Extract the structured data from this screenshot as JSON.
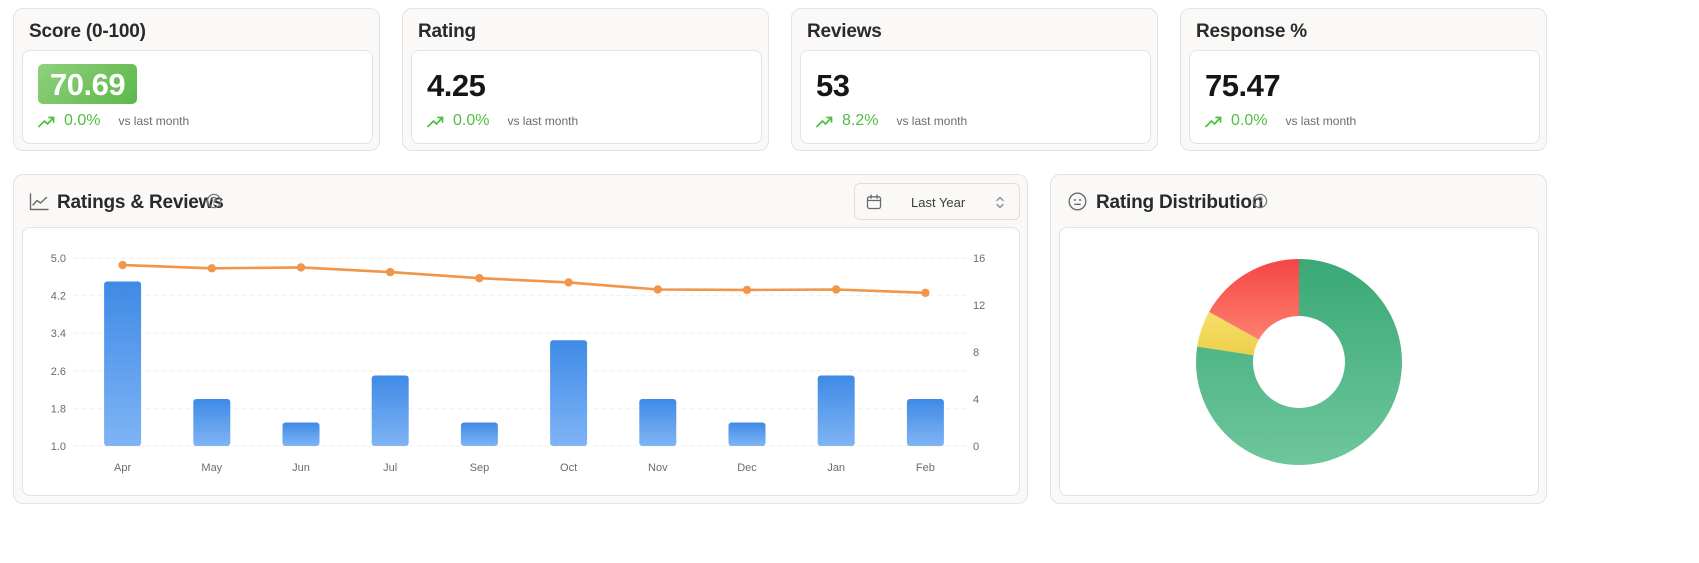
{
  "kpis": [
    {
      "title": "Score (0-100)",
      "value": "70.69",
      "trend_pct": "0.0%",
      "trend_note": "vs last month"
    },
    {
      "title": "Rating",
      "value": "4.25",
      "trend_pct": "0.0%",
      "trend_note": "vs last month"
    },
    {
      "title": "Reviews",
      "value": "53",
      "trend_pct": "8.2%",
      "trend_note": "vs last month"
    },
    {
      "title": "Response %",
      "value": "75.47",
      "trend_pct": "0.0%",
      "trend_note": "vs last month"
    }
  ],
  "ratings_reviews": {
    "title": "Ratings & Reviews",
    "range_label": "Last Year",
    "icons": {
      "header": "line-chart-icon",
      "help": "help-circle-icon",
      "range": "calendar-icon",
      "chevron": "chevron-up-down-icon"
    }
  },
  "rating_distribution": {
    "title": "Rating Distribution",
    "icons": {
      "header": "face-icon",
      "help": "help-circle-icon"
    }
  },
  "colors": {
    "bar": "#4a90e2",
    "line": "#f0954a",
    "trend_up": "#4fbf3f",
    "green": "#4caf82",
    "yellow": "#f2dc5d",
    "red": "#f04f4f"
  },
  "chart_data": [
    {
      "type": "bar",
      "categories": [
        "Apr",
        "May",
        "Jun",
        "Jul",
        "Sep",
        "Oct",
        "Nov",
        "Dec",
        "Jan",
        "Feb"
      ],
      "y_left_ticks": [
        "5.0",
        "4.2",
        "3.4",
        "2.6",
        "1.8",
        "1.0"
      ],
      "y_right_ticks": [
        "16",
        "12",
        "8",
        "4",
        "0"
      ],
      "ylim_left": [
        1.0,
        5.0
      ],
      "ylim_right": [
        0,
        16
      ],
      "grid": true,
      "series": [
        {
          "type": "bar",
          "axis": "right",
          "values": [
            14,
            4,
            2,
            6,
            2,
            9,
            4,
            2,
            6,
            4
          ]
        },
        {
          "type": "line",
          "axis": "left",
          "values": [
            4.85,
            4.78,
            4.8,
            4.7,
            4.57,
            4.48,
            4.33,
            4.32,
            4.33,
            4.26
          ]
        }
      ]
    },
    {
      "type": "pie",
      "donut": true,
      "slices": [
        {
          "value": 77.4,
          "color": "#4caf82"
        },
        {
          "value": 5.7,
          "color": "#f2dc5d"
        },
        {
          "value": 16.9,
          "color": "#f04f4f"
        }
      ]
    }
  ]
}
